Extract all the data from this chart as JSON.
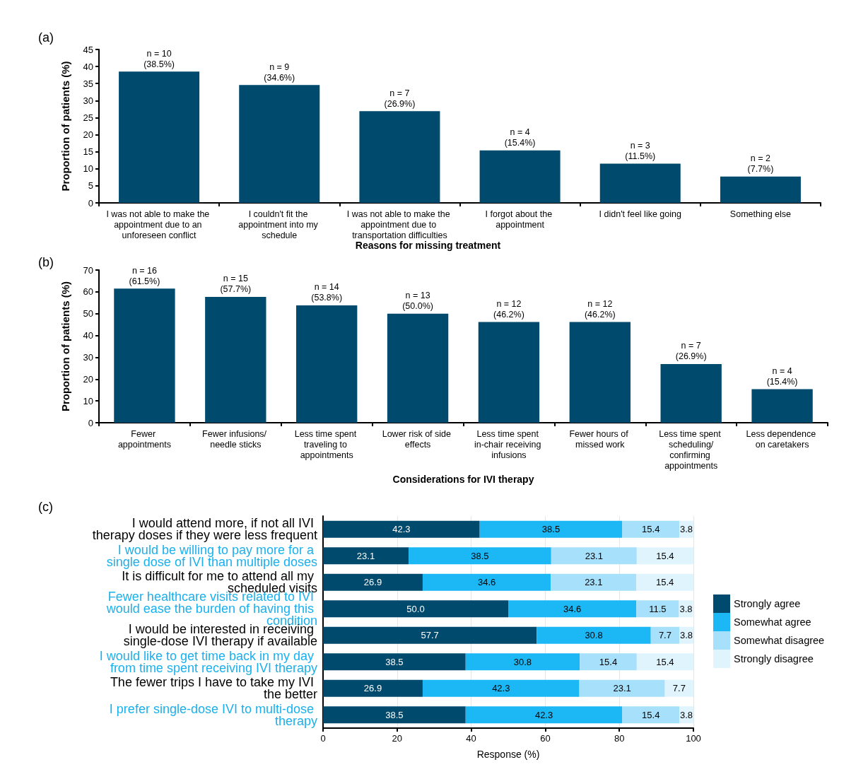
{
  "chart_data": [
    {
      "type": "bar",
      "annotations": [
        "(a)"
      ],
      "xlabel": "Reasons for missing treatment",
      "ylabel": "Proportion of patients (%)",
      "categories": [
        "I was not able to make the appointment due to an unforeseen conflict",
        "I couldn't fit the appointment into my schedule",
        "I was not able to make the appointment due to transportation difficulties",
        "I forgot about the appointment",
        "I didn't feel like going",
        "Something else"
      ],
      "values": [
        38.5,
        34.6,
        26.9,
        15.4,
        11.5,
        7.7
      ],
      "color": "#004a6e",
      "value_labels": [
        "n = 10\n(38.5%)",
        "n = 9\n(34.6%)",
        "n = 7\n(26.9%)",
        "n = 4\n(15.4%)",
        "n = 3\n(11.5%)",
        "n = 2\n(7.7%)"
      ],
      "ylim": [
        0,
        45
      ],
      "yticks": [
        0,
        5,
        10,
        15,
        20,
        25,
        30,
        35,
        40,
        45
      ],
      "grid": false,
      "legend": false
    },
    {
      "type": "bar",
      "annotations": [
        "(b)"
      ],
      "xlabel": "Considerations for IVI therapy",
      "ylabel": "Proportion of patients (%)",
      "categories": [
        "Fewer appointments",
        "Fewer infusions/ needle sticks",
        "Less time spent traveling to appointments",
        "Lower risk of side effects",
        "Less time spent in-chair receiving infusions",
        "Fewer hours of missed work",
        "Less time spent scheduling/confirming appointments",
        "Less dependence on caretakers"
      ],
      "values": [
        61.5,
        57.7,
        53.8,
        50.0,
        46.2,
        46.2,
        26.9,
        15.4
      ],
      "color": "#004a6e",
      "value_labels": [
        "n = 16\n(61.5%)",
        "n = 15\n(57.7%)",
        "n = 14\n(53.8%)",
        "n = 13\n(50.0%)",
        "n = 12\n(46.2%)",
        "n = 12\n(46.2%)",
        "n = 7\n(26.9%)",
        "n = 4\n(15.4%)"
      ],
      "ylim": [
        0,
        70
      ],
      "yticks": [
        0,
        10,
        20,
        30,
        40,
        50,
        60,
        70
      ],
      "grid": false,
      "legend": false
    },
    {
      "type": "bar",
      "orientation": "horizontal",
      "stacked": true,
      "annotations": [
        "(c)"
      ],
      "xlabel": "Response (%)",
      "categories": [
        "I would attend more, if not all IVI therapy doses if they were less frequent",
        "I would be willing to pay more for a single dose of IVI than multiple doses",
        "It is difficult for me to attend all my scheduled visits",
        "Fewer healthcare visits related to IVI would ease the burden of having this condition",
        "I would be interested in receiving single-dose IVI therapy if available",
        "I would like to get time back in my day from time spent receiving IVI therapy",
        "The fewer trips I have to take my IVI the better",
        "I prefer single-dose IVI to multi-dose therapy"
      ],
      "series": [
        {
          "name": "Strongly agree",
          "color": "#004a6e",
          "values": [
            42.3,
            23.1,
            26.9,
            50.0,
            57.7,
            38.5,
            26.9,
            38.5
          ],
          "value_labels": [
            "42.3",
            "23.1",
            "26.9",
            "50.0",
            "57.7",
            "38.5",
            "26.9",
            "38.5"
          ]
        },
        {
          "name": "Somewhat agree",
          "color": "#1cb8f5",
          "values": [
            38.5,
            38.5,
            34.6,
            34.6,
            30.8,
            30.8,
            42.3,
            42.3
          ],
          "value_labels": [
            "38.5",
            "38.5",
            "34.6",
            "34.6",
            "30.8",
            "30.8",
            "42.3",
            "42.3"
          ]
        },
        {
          "name": "Somewhat disagree",
          "color": "#a6e0fb",
          "values": [
            15.4,
            23.1,
            23.1,
            11.5,
            7.7,
            15.4,
            23.1,
            15.4
          ],
          "value_labels": [
            "15.4",
            "23.1",
            "23.1",
            "11.5",
            "7.7",
            "15.4",
            "23.1",
            "15.4"
          ]
        },
        {
          "name": "Strongly disagree",
          "color": "#e0f4fd",
          "values": [
            3.8,
            15.4,
            15.4,
            3.8,
            3.8,
            15.4,
            7.7,
            3.8
          ],
          "value_labels": [
            "3.8",
            "15.4",
            "15.4",
            "3.8",
            "3.8",
            "15.4",
            "7.7",
            "3.8"
          ]
        }
      ],
      "xlim": [
        0,
        100
      ],
      "xticks": [
        0,
        20,
        40,
        60,
        80,
        100
      ],
      "grid": "x",
      "legend": "right"
    }
  ]
}
